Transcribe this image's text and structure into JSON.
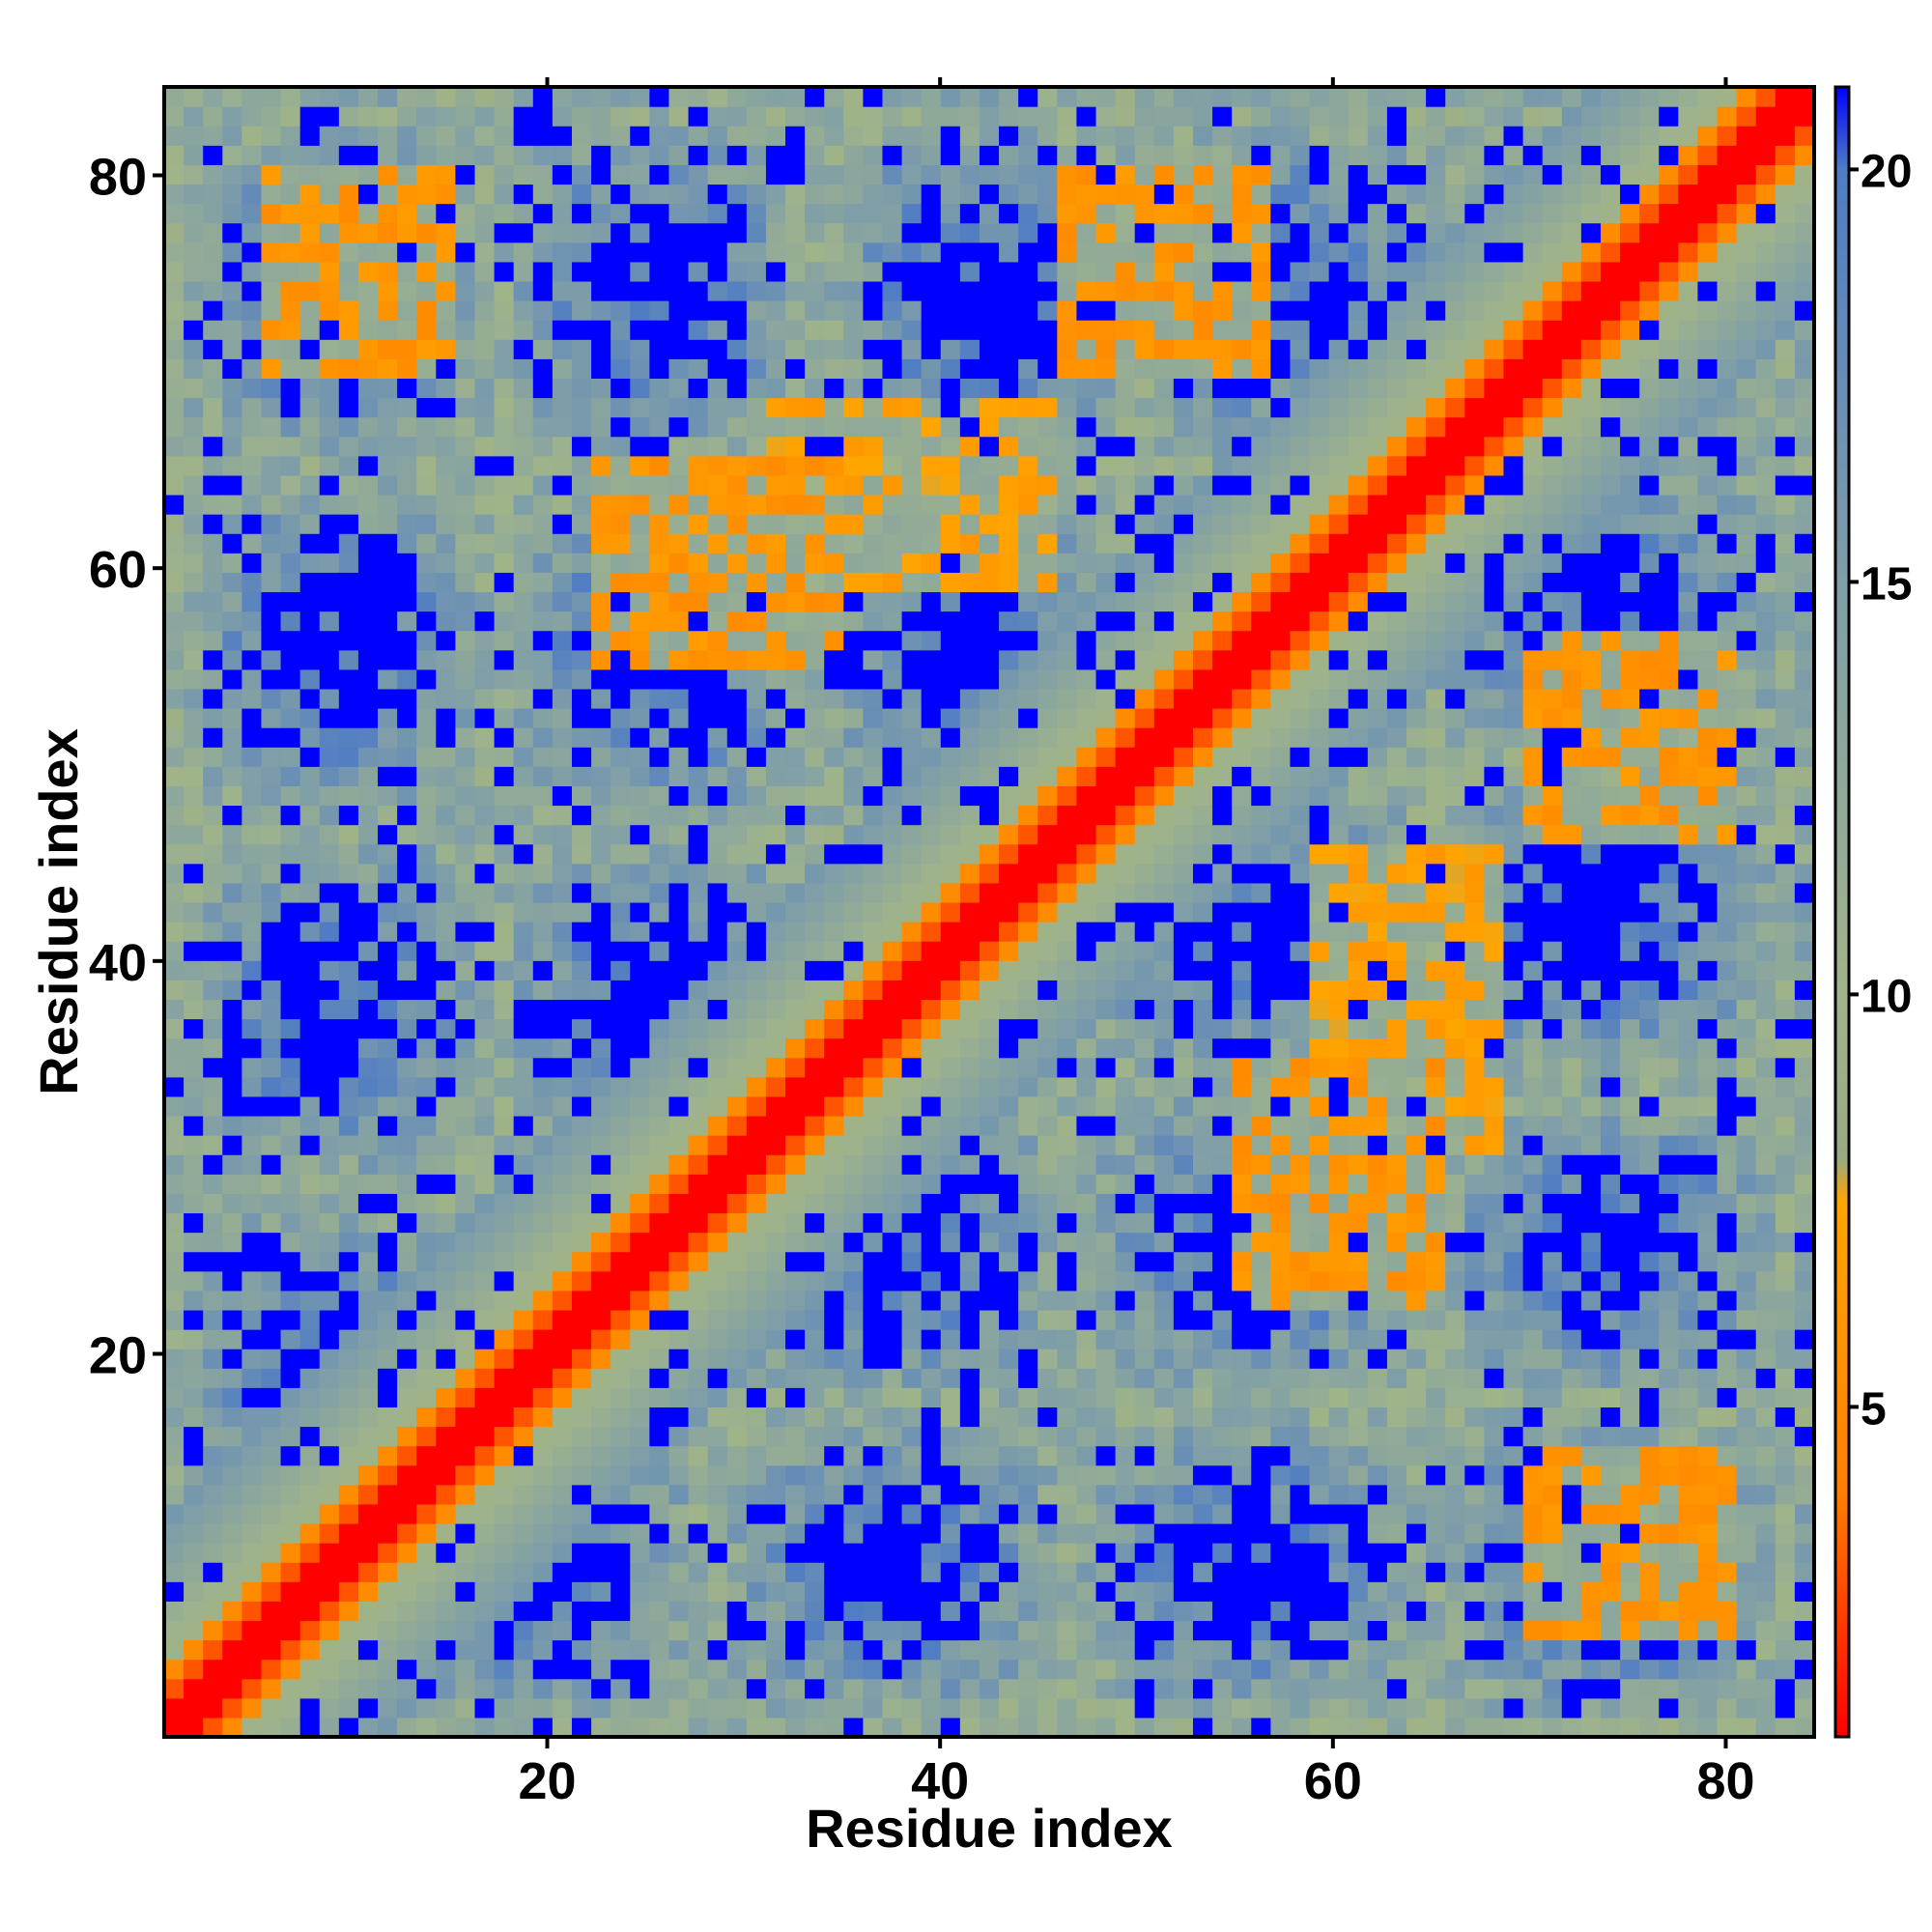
{
  "chart_data": {
    "type": "heatmap",
    "title": "",
    "xlabel": "Residue index",
    "ylabel": "Residue index",
    "n_residues": 85,
    "xlim": [
      0.5,
      84.5
    ],
    "ylim": [
      0.5,
      84.5
    ],
    "x_ticks": [
      20,
      40,
      60,
      80
    ],
    "y_ticks": [
      20,
      40,
      60,
      80
    ],
    "x_tick_labels": [
      "20",
      "40",
      "60",
      "80"
    ],
    "y_tick_labels": [
      "20",
      "40",
      "60",
      "80"
    ],
    "colorbar": {
      "range": [
        1,
        21
      ],
      "ticks": [
        5,
        10,
        15,
        20
      ],
      "tick_labels": [
        "5",
        "10",
        "15",
        "20"
      ],
      "stops": [
        {
          "value": 1,
          "color": "#ff0000"
        },
        {
          "value": 4,
          "color": "#ff8000"
        },
        {
          "value": 7.5,
          "color": "#ffa500"
        },
        {
          "value": 8,
          "color": "#9aaa80"
        },
        {
          "value": 10,
          "color": "#a0b48a"
        },
        {
          "value": 15,
          "color": "#7f9ea8"
        },
        {
          "value": 20,
          "color": "#4f7cc4"
        },
        {
          "value": 21,
          "color": "#0000ff"
        }
      ]
    },
    "cutoff": 20,
    "beyond_cutoff_color": "#0000ff",
    "description_values": {
      "diagonal_band": "distance ~1-4 near |i-j|<=2",
      "contact_blocks": [
        {
          "i_range": [
            5,
            13
          ],
          "j_range": [
            70,
            78
          ],
          "value": 5
        },
        {
          "i_range": [
            22,
            34
          ],
          "j_range": [
            55,
            65
          ],
          "value": 5
        },
        {
          "i_range": [
            46,
            56
          ],
          "j_range": [
            70,
            80
          ],
          "value": 5
        },
        {
          "i_range": [
            59,
            68
          ],
          "j_range": [
            30,
            45
          ],
          "value": 6
        },
        {
          "i_range": [
            71,
            80
          ],
          "j_range": [
            5,
            14
          ],
          "value": 5
        }
      ]
    }
  }
}
